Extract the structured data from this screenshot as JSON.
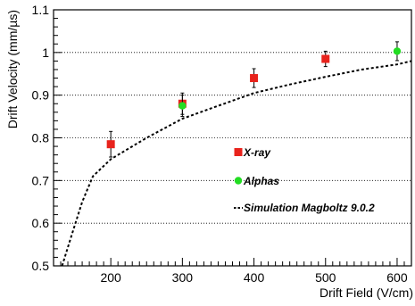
{
  "chart_data": {
    "type": "scatter",
    "title": "",
    "xlabel": "Drift Field (V/cm)",
    "ylabel": "Drift Velocity (mm/µs)",
    "xlim": [
      120,
      620
    ],
    "ylim": [
      0.5,
      1.1
    ],
    "x_ticks": [
      200,
      300,
      400,
      500,
      600
    ],
    "y_ticks": [
      0.5,
      0.6,
      0.7,
      0.8,
      0.9,
      1,
      1.1
    ],
    "grid": "horizontal-dotted",
    "legend_placement": "center-right",
    "series": [
      {
        "name": "X-ray",
        "marker": "square",
        "color": "#e8231c",
        "points": [
          {
            "x": 200,
            "y": 0.785,
            "err": 0.03
          },
          {
            "x": 300,
            "y": 0.88,
            "err": 0.025
          },
          {
            "x": 400,
            "y": 0.94,
            "err": 0.022
          },
          {
            "x": 500,
            "y": 0.985,
            "err": 0.018
          }
        ]
      },
      {
        "name": "Alphas",
        "marker": "circle",
        "color": "#22dd22",
        "points": [
          {
            "x": 300,
            "y": 0.875,
            "err": 0.025
          },
          {
            "x": 600,
            "y": 1.003,
            "err": 0.022
          }
        ]
      },
      {
        "name": "Simulation Magboltz 9.0.2",
        "marker": "dashed-line",
        "color": "#000000",
        "points": [
          {
            "x": 132,
            "y": 0.5
          },
          {
            "x": 145,
            "y": 0.57
          },
          {
            "x": 160,
            "y": 0.65
          },
          {
            "x": 175,
            "y": 0.71
          },
          {
            "x": 200,
            "y": 0.75
          },
          {
            "x": 250,
            "y": 0.8
          },
          {
            "x": 300,
            "y": 0.845
          },
          {
            "x": 350,
            "y": 0.875
          },
          {
            "x": 400,
            "y": 0.905
          },
          {
            "x": 450,
            "y": 0.925
          },
          {
            "x": 500,
            "y": 0.943
          },
          {
            "x": 550,
            "y": 0.96
          },
          {
            "x": 600,
            "y": 0.972
          },
          {
            "x": 620,
            "y": 0.98
          }
        ]
      }
    ]
  }
}
